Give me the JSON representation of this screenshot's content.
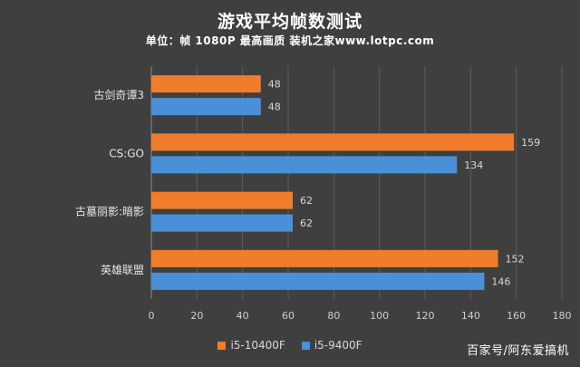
{
  "chart_data": {
    "type": "bar",
    "orientation": "horizontal",
    "title": "游戏平均帧数测试",
    "subtitle": "单位：帧   1080P 最高画质 装机之家www.lotpc.com",
    "categories": [
      "古剑奇谭3",
      "CS:GO",
      "古墓丽影:暗影",
      "英雄联盟"
    ],
    "series": [
      {
        "name": "i5-10400F",
        "color": "#f07d2b",
        "values": [
          48,
          159,
          62,
          152
        ]
      },
      {
        "name": "i5-9400F",
        "color": "#4a90d9",
        "values": [
          48,
          134,
          62,
          146
        ]
      }
    ],
    "xlim": [
      0,
      180
    ],
    "xticks": [
      0,
      20,
      40,
      60,
      80,
      100,
      120,
      140,
      160,
      180
    ],
    "grid": true,
    "legend_position": "bottom",
    "data_labels": true
  },
  "watermark": "百家号/阿东爱搞机"
}
